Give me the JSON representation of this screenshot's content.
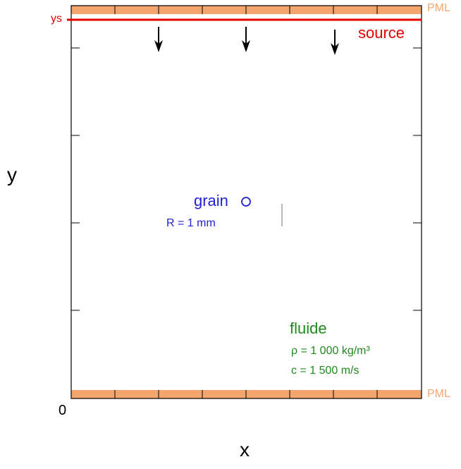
{
  "labels": {
    "pml_top": "PML",
    "pml_bottom": "PML",
    "ys": "ys",
    "source": "source",
    "x_axis": "x",
    "y_axis": "y",
    "origin": "0",
    "grain": "grain",
    "grain_radius": "R = 1 mm",
    "fluide": "fluide",
    "density": "ρ = 1 000 kg/m³",
    "sound_speed": "c = 1 500 m/s"
  },
  "colors": {
    "pml": "#f4a46d",
    "source": "#e60000",
    "grain": "#1f1fd6",
    "fluide": "#1e8a1e",
    "frame": "#000000"
  }
}
